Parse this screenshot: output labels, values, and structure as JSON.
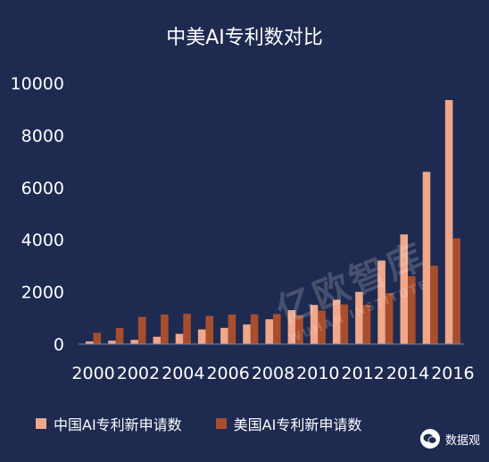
{
  "chart_data": {
    "type": "bar",
    "title": "中美AI专利数对比",
    "xlabel": "",
    "ylabel": "",
    "ylim": [
      0,
      10000
    ],
    "yticks": [
      0,
      2000,
      4000,
      6000,
      8000,
      10000
    ],
    "categories": [
      "2000",
      "2001",
      "2002",
      "2003",
      "2004",
      "2005",
      "2006",
      "2007",
      "2008",
      "2009",
      "2010",
      "2011",
      "2012",
      "2013",
      "2014",
      "2015",
      "2016"
    ],
    "xtick_labels": [
      "2000",
      "2002",
      "2004",
      "2006",
      "2008",
      "2010",
      "2012",
      "2014",
      "2016"
    ],
    "series": [
      {
        "name": "中国AI专利新申请数",
        "color": "#f0a78a",
        "values": [
          100,
          130,
          160,
          280,
          390,
          560,
          620,
          750,
          950,
          1300,
          1500,
          1700,
          2000,
          3200,
          4200,
          6600,
          9350
        ]
      },
      {
        "name": "美国AI专利新申请数",
        "color": "#a84e2c",
        "values": [
          430,
          620,
          1040,
          1130,
          1160,
          1080,
          1130,
          1140,
          1150,
          1100,
          1280,
          1520,
          1500,
          1950,
          2600,
          3000,
          4050
        ]
      }
    ],
    "legend_position": "bottom",
    "grid": false
  },
  "watermark": {
    "text": "亿欧智库",
    "subtext": "WUHAN INSTITUTE"
  },
  "badge": {
    "icon": "wechat-icon",
    "label": "数据观"
  }
}
